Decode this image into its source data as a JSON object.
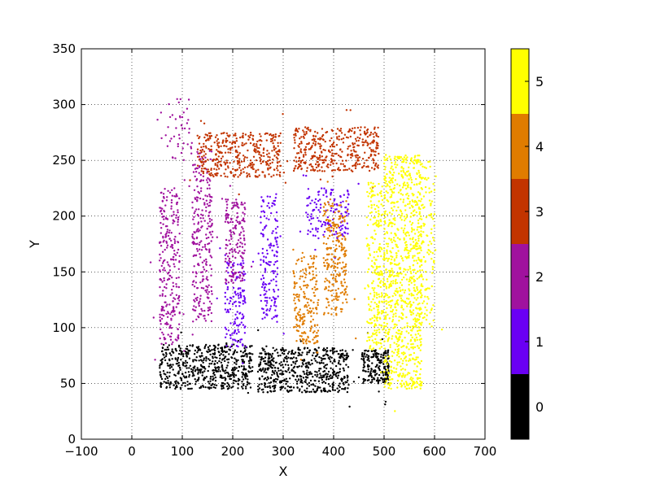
{
  "chart_data": {
    "type": "scatter",
    "xlabel": "X",
    "ylabel": "Y",
    "xlim": [
      -100,
      700
    ],
    "ylim": [
      0,
      350
    ],
    "x_ticks": [
      -100,
      0,
      100,
      200,
      300,
      400,
      500,
      600,
      700
    ],
    "y_ticks": [
      0,
      50,
      100,
      150,
      200,
      250,
      300,
      350
    ],
    "grid": true,
    "colorbar": {
      "ticks": [
        0,
        1,
        2,
        3,
        4,
        5
      ],
      "colors": [
        "#000000",
        "#6a00f4",
        "#a0129e",
        "#c23400",
        "#e07c00",
        "#ffff00"
      ]
    },
    "clusters": [
      {
        "class": 0,
        "count": 1300,
        "regions": [
          {
            "x": [
              55,
              240
            ],
            "y": [
              45,
              85
            ],
            "w": 3
          },
          {
            "x": [
              250,
              430
            ],
            "y": [
              42,
              82
            ],
            "w": 3
          },
          {
            "x": [
              455,
              510
            ],
            "y": [
              50,
              80
            ],
            "w": 1
          }
        ]
      },
      {
        "class": 1,
        "count": 420,
        "regions": [
          {
            "x": [
              185,
              225
            ],
            "y": [
              82,
              160
            ],
            "w": 1
          },
          {
            "x": [
              255,
              290
            ],
            "y": [
              105,
              220
            ],
            "w": 1.2
          },
          {
            "x": [
              345,
              430
            ],
            "y": [
              180,
              225
            ],
            "w": 1
          }
        ]
      },
      {
        "class": 2,
        "count": 720,
        "regions": [
          {
            "x": [
              55,
              95
            ],
            "y": [
              85,
              225
            ],
            "w": 1.3
          },
          {
            "x": [
              120,
              160
            ],
            "y": [
              105,
              260
            ],
            "w": 1.3
          },
          {
            "x": [
              185,
              225
            ],
            "y": [
              140,
              215
            ],
            "w": 0.8
          },
          {
            "x": [
              70,
              120
            ],
            "y": [
              250,
              305
            ],
            "w": 0.2
          }
        ]
      },
      {
        "class": 3,
        "count": 760,
        "regions": [
          {
            "x": [
              130,
              295
            ],
            "y": [
              235,
              275
            ],
            "w": 1
          },
          {
            "x": [
              320,
              490
            ],
            "y": [
              240,
              280
            ],
            "w": 1
          }
        ]
      },
      {
        "class": 4,
        "count": 420,
        "regions": [
          {
            "x": [
              320,
              370
            ],
            "y": [
              85,
              165
            ],
            "w": 1
          },
          {
            "x": [
              380,
              425
            ],
            "y": [
              110,
              215
            ],
            "w": 1.2
          }
        ]
      },
      {
        "class": 5,
        "count": 1300,
        "regions": [
          {
            "x": [
              500,
              575
            ],
            "y": [
              45,
              255
            ],
            "w": 3
          },
          {
            "x": [
              465,
              500
            ],
            "y": [
              80,
              230
            ],
            "w": 0.8
          },
          {
            "x": [
              570,
              600
            ],
            "y": [
              100,
              250
            ],
            "w": 0.4
          }
        ]
      }
    ]
  }
}
